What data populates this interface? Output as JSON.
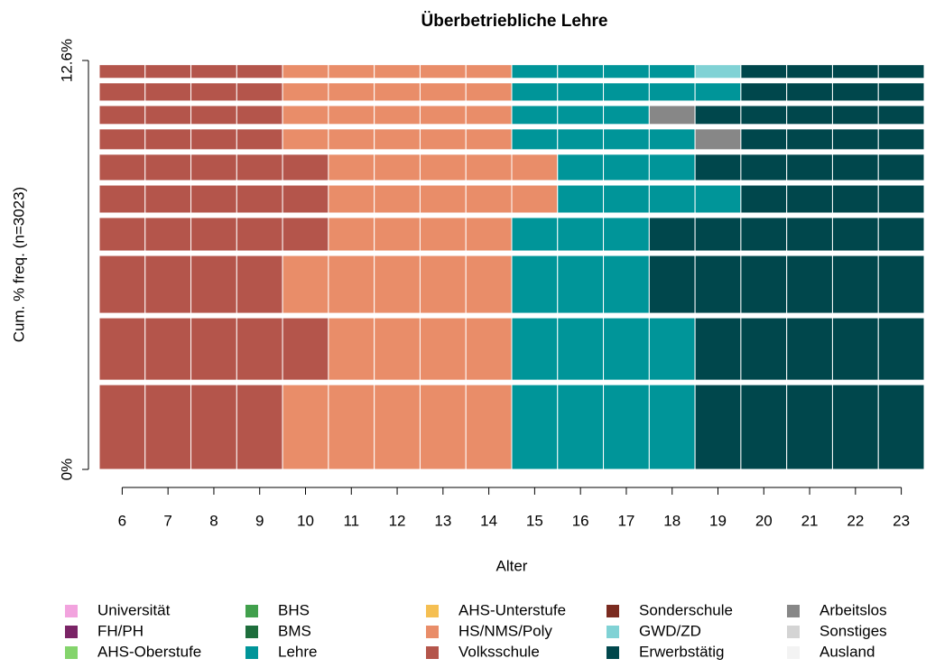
{
  "chart_data": {
    "type": "sequence-index",
    "title": "Überbetriebliche Lehre",
    "xlabel": "Alter",
    "ylabel": "Cum. % freq. (n=3023)",
    "xlim": [
      5.5,
      23.5
    ],
    "xticks": [
      6,
      7,
      8,
      9,
      10,
      11,
      12,
      13,
      14,
      15,
      16,
      17,
      18,
      19,
      20,
      21,
      22,
      23
    ],
    "ylim": [
      0,
      12.6
    ],
    "yticks": [
      {
        "value": 0,
        "label": "0%"
      },
      {
        "value": 12.6,
        "label": "12.6%"
      }
    ],
    "states": [
      {
        "name": "Universität",
        "color": "#f2a3de"
      },
      {
        "name": "FH/PH",
        "color": "#7a2466"
      },
      {
        "name": "AHS-Oberstufe",
        "color": "#84d46c"
      },
      {
        "name": "BHS",
        "color": "#41a04c"
      },
      {
        "name": "BMS",
        "color": "#1e6e3c"
      },
      {
        "name": "Lehre",
        "color": "#009599"
      },
      {
        "name": "AHS-Unterstufe",
        "color": "#f5bf52"
      },
      {
        "name": "HS/NMS/Poly",
        "color": "#e98d69"
      },
      {
        "name": "Volksschule",
        "color": "#b4554b"
      },
      {
        "name": "Sonderschule",
        "color": "#7b2b20"
      },
      {
        "name": "GWD/ZD",
        "color": "#80d2d5"
      },
      {
        "name": "Erwerbstätig",
        "color": "#00474c"
      },
      {
        "name": "Arbeitslos",
        "color": "#878787"
      },
      {
        "name": "Sonstiges",
        "color": "#d4d4d4"
      },
      {
        "name": "Ausland",
        "color": "#f3f3f3"
      }
    ],
    "rows": [
      {
        "weight": 2.75,
        "states": [
          8,
          8,
          8,
          8,
          7,
          7,
          7,
          7,
          7,
          5,
          5,
          5,
          5,
          11,
          11,
          11,
          11,
          11
        ]
      },
      {
        "weight": 2.06,
        "states": [
          8,
          8,
          8,
          8,
          8,
          7,
          7,
          7,
          7,
          5,
          5,
          5,
          5,
          11,
          11,
          11,
          11,
          11
        ]
      },
      {
        "weight": 1.92,
        "states": [
          8,
          8,
          8,
          8,
          7,
          7,
          7,
          7,
          7,
          5,
          5,
          5,
          11,
          11,
          11,
          11,
          11,
          11
        ]
      },
      {
        "weight": 1.17,
        "states": [
          8,
          8,
          8,
          8,
          8,
          7,
          7,
          7,
          7,
          5,
          5,
          5,
          11,
          11,
          11,
          11,
          11,
          11
        ]
      },
      {
        "weight": 1.0,
        "states": [
          8,
          8,
          8,
          8,
          8,
          7,
          7,
          7,
          7,
          7,
          5,
          5,
          5,
          5,
          11,
          11,
          11,
          11
        ]
      },
      {
        "weight": 0.95,
        "states": [
          8,
          8,
          8,
          8,
          8,
          7,
          7,
          7,
          7,
          7,
          5,
          5,
          5,
          11,
          11,
          11,
          11,
          11
        ]
      },
      {
        "weight": 0.78,
        "states": [
          8,
          8,
          8,
          8,
          7,
          7,
          7,
          7,
          7,
          5,
          5,
          5,
          5,
          12,
          11,
          11,
          11,
          11
        ]
      },
      {
        "weight": 0.72,
        "states": [
          8,
          8,
          8,
          8,
          7,
          7,
          7,
          7,
          7,
          5,
          5,
          5,
          12,
          11,
          11,
          11,
          11,
          11
        ]
      },
      {
        "weight": 0.7,
        "states": [
          8,
          8,
          8,
          8,
          7,
          7,
          7,
          7,
          7,
          5,
          5,
          5,
          5,
          5,
          11,
          11,
          11,
          11
        ]
      },
      {
        "weight": 0.56,
        "states": [
          8,
          8,
          8,
          8,
          7,
          7,
          7,
          7,
          7,
          5,
          5,
          5,
          5,
          10,
          11,
          11,
          11,
          11
        ]
      }
    ]
  }
}
